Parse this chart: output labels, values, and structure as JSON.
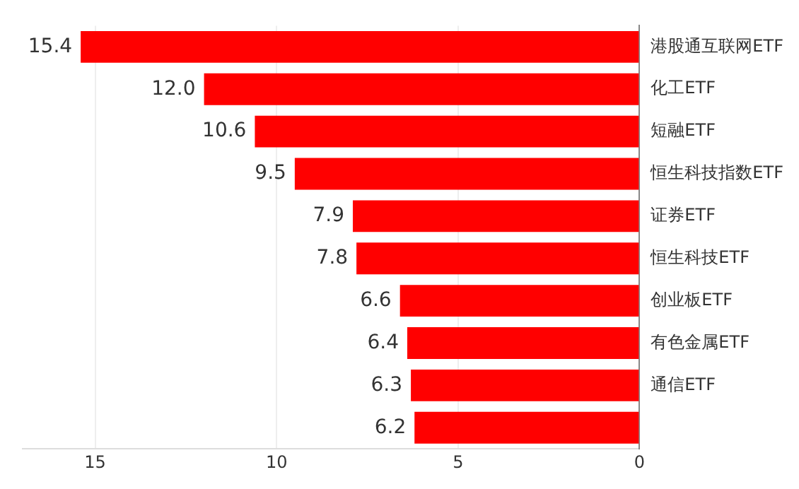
{
  "chart_data": {
    "type": "bar",
    "orientation": "horizontal",
    "categories": [
      "港股通互联网ETF",
      "化工ETF",
      "短融ETF",
      "恒生科技指数ETF",
      "证券ETF",
      "恒生科技ETF",
      "创业板ETF",
      "有色金属ETF",
      "通信ETF",
      null
    ],
    "values": [
      15.4,
      12.0,
      10.6,
      9.5,
      7.9,
      7.8,
      6.6,
      6.4,
      6.3,
      6.2
    ],
    "value_labels": [
      "15.4",
      "12.0",
      "10.6",
      "9.5",
      "7.9",
      "7.8",
      "6.6",
      "6.4",
      "6.3",
      "6.2"
    ],
    "color": "#ff0000",
    "xlim": [
      17,
      0
    ],
    "xticks": [
      15,
      10,
      5,
      0
    ],
    "grid": "x",
    "legend": false
  }
}
